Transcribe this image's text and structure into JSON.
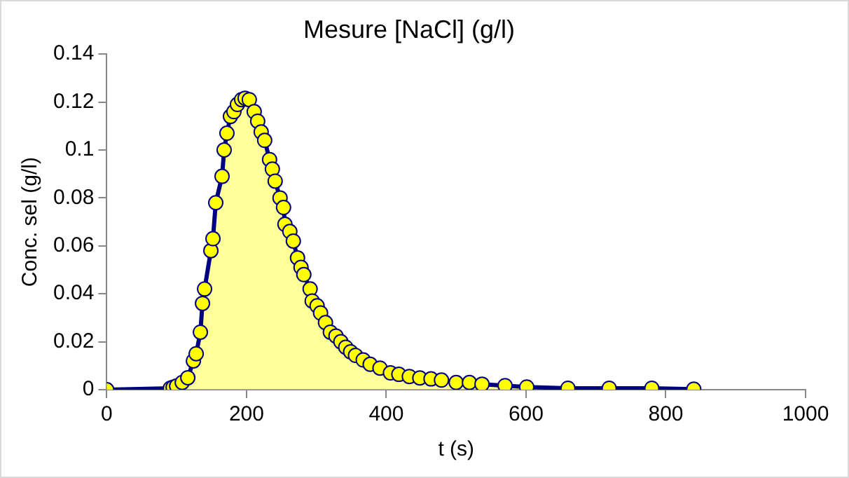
{
  "chart_data": {
    "type": "area",
    "title": "Mesure [NaCl] (g/l)",
    "xlabel": "t (s)",
    "ylabel": "Conc. sel (g/l)",
    "x": [
      0,
      91,
      95,
      100,
      108,
      116,
      124,
      128,
      134,
      137,
      140,
      149,
      152,
      156,
      165,
      168,
      172,
      177,
      182,
      187,
      193,
      198,
      204,
      211,
      216,
      221,
      226,
      233,
      237,
      241,
      248,
      253,
      255,
      262,
      267,
      273,
      278,
      282,
      291,
      294,
      301,
      306,
      313,
      320,
      328,
      335,
      342,
      349,
      356,
      367,
      377,
      391,
      406,
      418,
      433,
      448,
      464,
      479,
      500,
      519,
      537,
      570,
      601,
      660,
      719,
      780,
      840
    ],
    "series": [
      {
        "color": "#ffff00",
        "values": [
          0,
          0.0006,
          0.001,
          0.0015,
          0.003,
          0.005,
          0.012,
          0.015,
          0.024,
          0.036,
          0.042,
          0.058,
          0.063,
          0.078,
          0.089,
          0.1,
          0.107,
          0.114,
          0.116,
          0.119,
          0.121,
          0.1216,
          0.121,
          0.116,
          0.112,
          0.1075,
          0.104,
          0.096,
          0.092,
          0.087,
          0.08,
          0.076,
          0.069,
          0.066,
          0.062,
          0.055,
          0.051,
          0.048,
          0.042,
          0.037,
          0.035,
          0.032,
          0.028,
          0.024,
          0.0224,
          0.02,
          0.0177,
          0.0158,
          0.0143,
          0.0124,
          0.0106,
          0.009,
          0.007,
          0.0064,
          0.0055,
          0.0049,
          0.0045,
          0.004,
          0.003,
          0.003,
          0.0023,
          0.0017,
          0.0011,
          0.0006,
          0.0006,
          0.0006,
          0.0002
        ]
      }
    ],
    "xlim": [
      0,
      1000
    ],
    "xticks": [
      0,
      200,
      400,
      600,
      800,
      1000
    ],
    "ylim": [
      0,
      0.14
    ],
    "yticks": [
      0,
      0.02,
      0.04,
      0.06,
      0.08,
      0.1,
      0.12,
      0.14
    ],
    "grid": false,
    "legend": false,
    "marker": "circle",
    "line_style": "solid"
  }
}
